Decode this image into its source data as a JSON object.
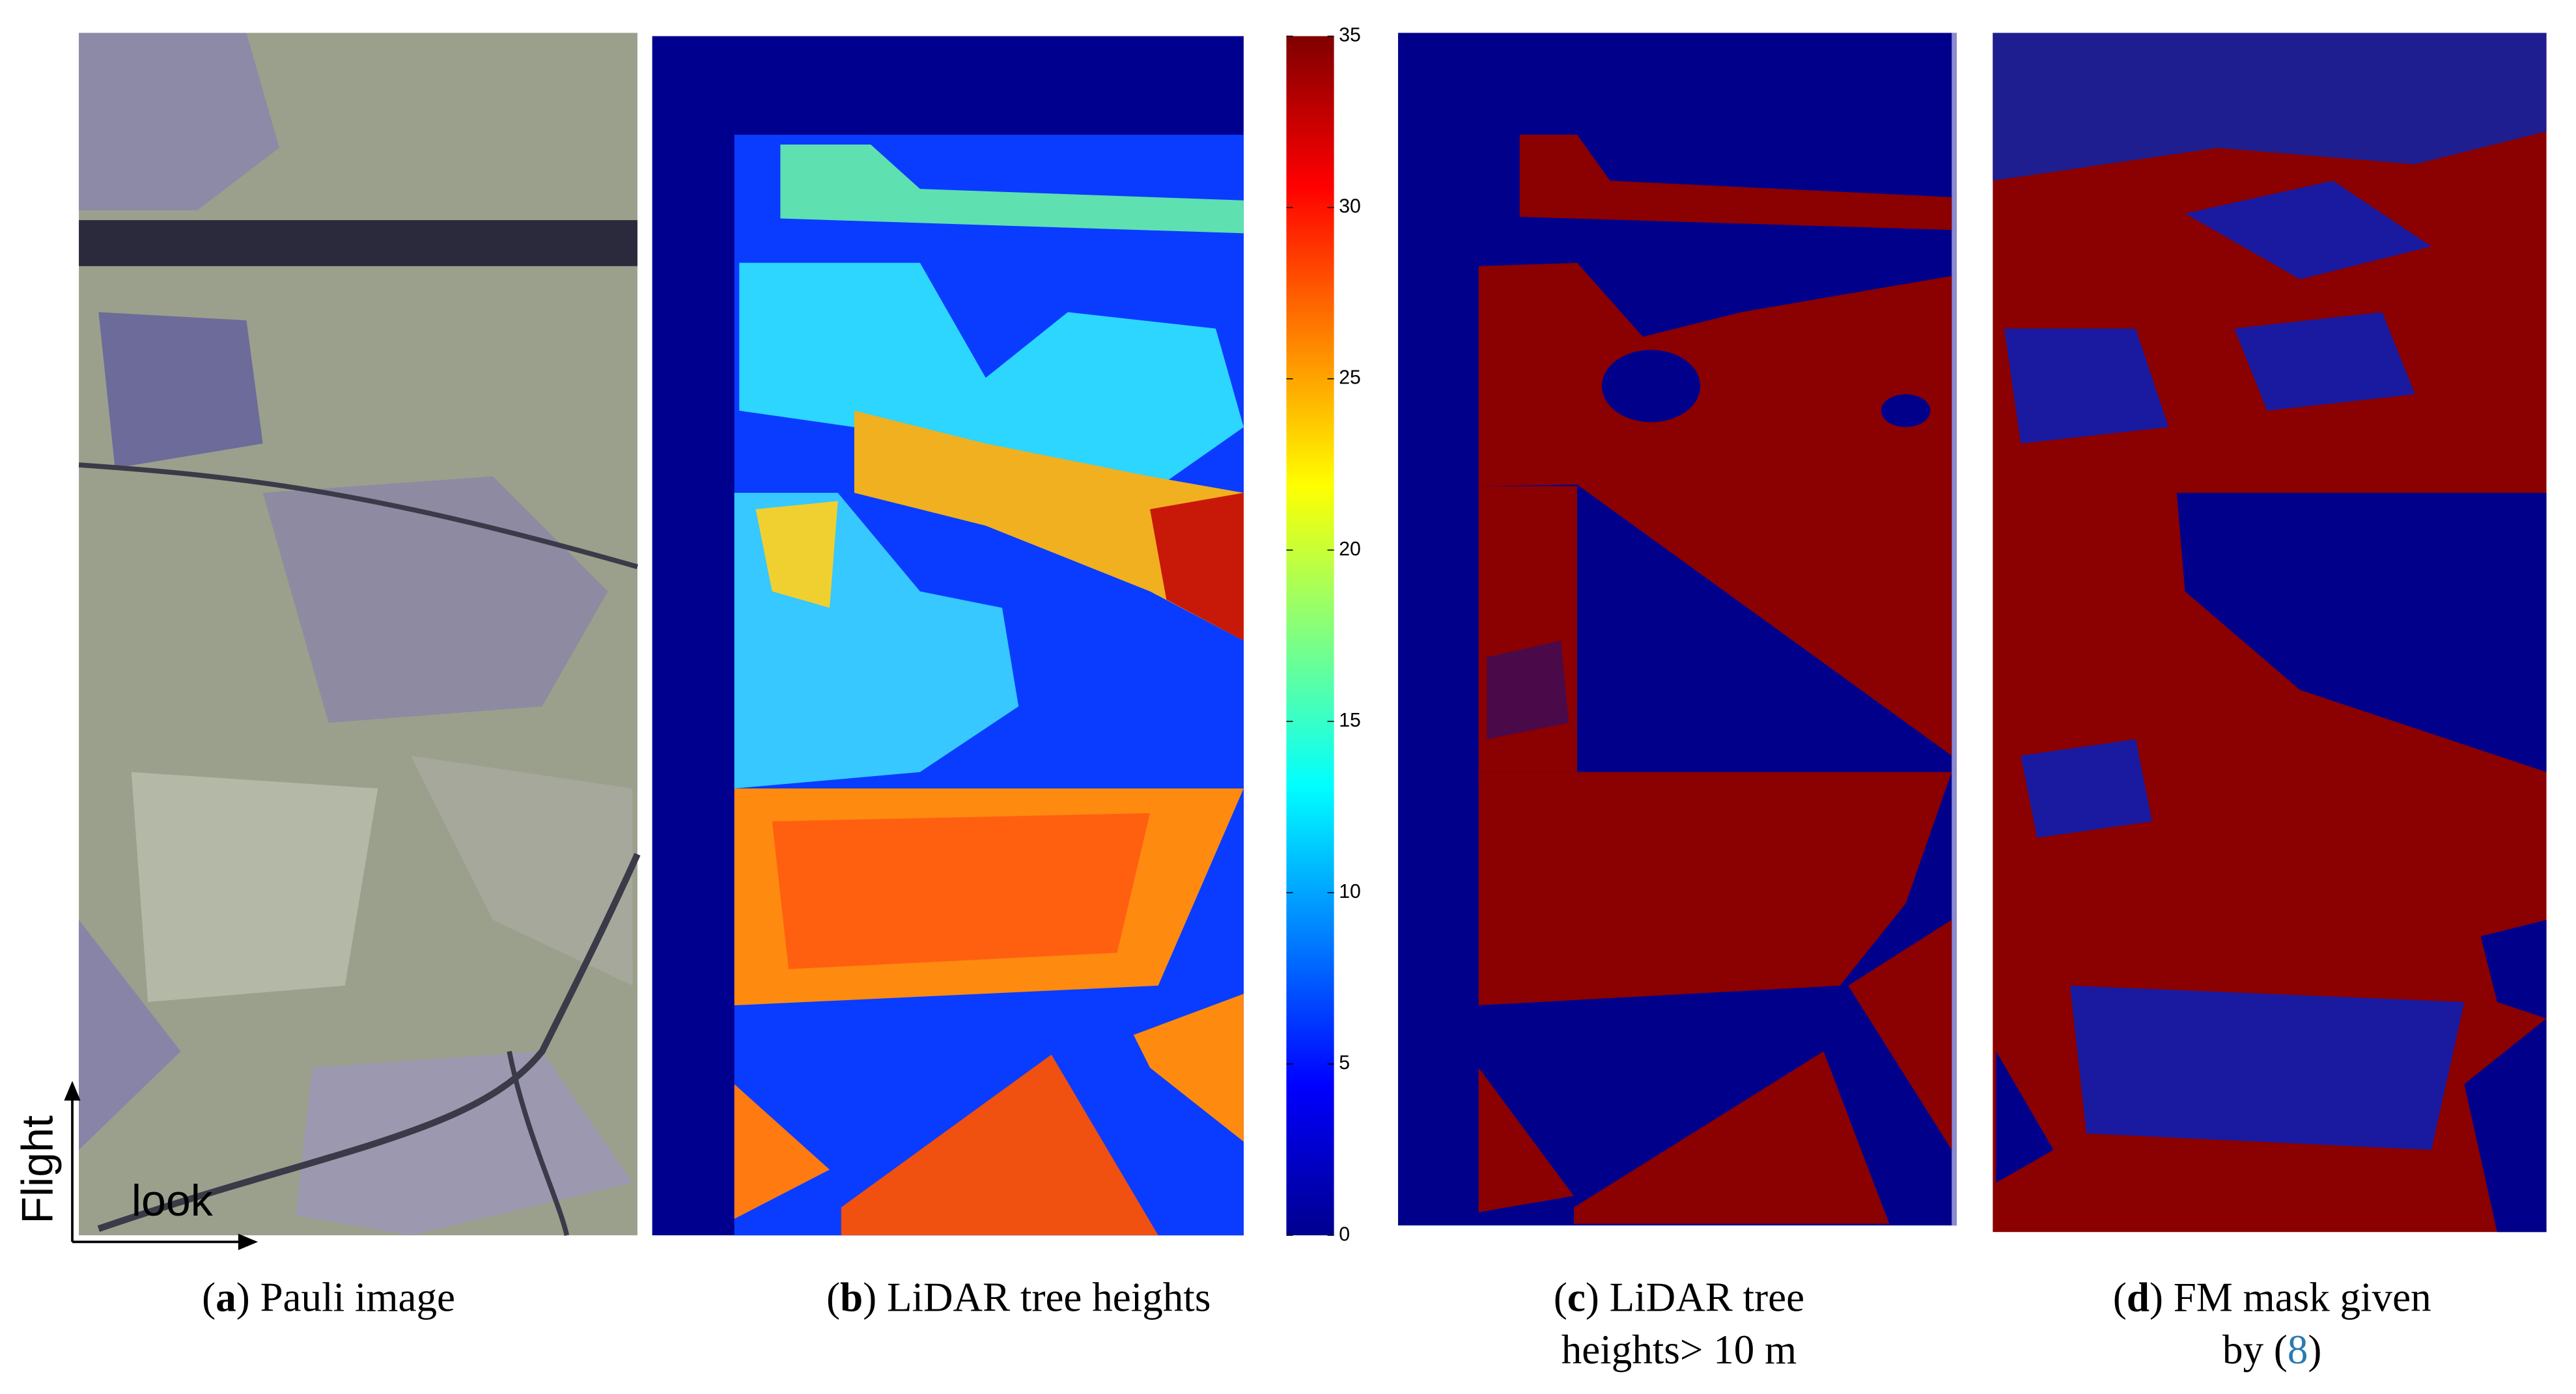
{
  "figure": {
    "panels": [
      {
        "caption": [
          [
            {
              "text": "(",
              "bold": false
            },
            {
              "text": "a",
              "bold": true
            },
            {
              "text": ") Pauli image",
              "bold": false
            }
          ]
        ]
      },
      {
        "caption": [
          [
            {
              "text": "(",
              "bold": false
            },
            {
              "text": "b",
              "bold": true
            },
            {
              "text": ") LiDAR tree heights",
              "bold": false
            }
          ]
        ]
      },
      {
        "caption": [
          [
            {
              "text": "(",
              "bold": false
            },
            {
              "text": "c",
              "bold": true
            },
            {
              "text": ") LiDAR tree",
              "bold": false
            }
          ],
          [
            {
              "text": "heights> 10 m",
              "bold": false
            }
          ]
        ]
      },
      {
        "caption": [
          [
            {
              "text": "(",
              "bold": false
            },
            {
              "text": "d",
              "bold": true
            },
            {
              "text": ") FM mask given",
              "bold": false
            }
          ],
          [
            {
              "text": "by (",
              "bold": false
            },
            {
              "text": "8",
              "bold": false,
              "color": "#2a7ab0"
            },
            {
              "text": ")",
              "bold": false
            }
          ]
        ]
      }
    ],
    "colorbar": {
      "lim": [
        0,
        35
      ],
      "ticks": [
        0,
        5,
        10,
        15,
        20,
        25,
        30,
        35
      ],
      "colormap": [
        "#00008f",
        "#0000ff",
        "#0080ff",
        "#00ffff",
        "#80ff80",
        "#ffff00",
        "#ff8000",
        "#ff0000",
        "#800000"
      ]
    },
    "annotations": {
      "flight": "Flight",
      "look": "look"
    }
  }
}
